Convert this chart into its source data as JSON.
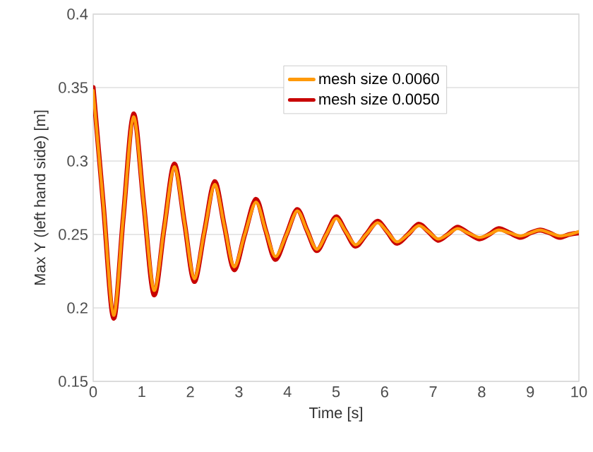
{
  "chart_data": {
    "type": "line",
    "xlabel": "Time [s]",
    "ylabel": "Max Y (left hand side) [m]",
    "xlim": [
      0,
      10
    ],
    "xticks": [
      0,
      1,
      2,
      3,
      4,
      5,
      6,
      7,
      8,
      9,
      10
    ],
    "ylim": [
      0.15,
      0.4
    ],
    "yticks": [
      0.15,
      0.2,
      0.25,
      0.3,
      0.35,
      0.4
    ],
    "grid": "y",
    "legend": "top",
    "marker": "none",
    "line_style": "solid",
    "series": [
      {
        "name": "mesh size 0.0050",
        "color": "#c80000",
        "x": [
          0,
          0.21,
          0.42,
          0.62,
          0.83,
          1.04,
          1.25,
          1.46,
          1.67,
          1.88,
          2.08,
          2.29,
          2.5,
          2.7,
          2.9,
          3.12,
          3.35,
          3.55,
          3.75,
          3.98,
          4.2,
          4.4,
          4.6,
          4.8,
          5.0,
          5.2,
          5.4,
          5.62,
          5.85,
          6.05,
          6.25,
          6.48,
          6.7,
          6.9,
          7.1,
          7.3,
          7.5,
          7.72,
          7.95,
          8.15,
          8.35,
          8.58,
          8.8,
          9.0,
          9.2,
          9.4,
          9.6,
          9.8,
          10
        ],
        "values": [
          0.35,
          0.27,
          0.193,
          0.262,
          0.332,
          0.271,
          0.209,
          0.254,
          0.298,
          0.258,
          0.218,
          0.252,
          0.286,
          0.256,
          0.226,
          0.25,
          0.274,
          0.253,
          0.233,
          0.25,
          0.267,
          0.253,
          0.239,
          0.25,
          0.262,
          0.252,
          0.242,
          0.25,
          0.259,
          0.252,
          0.244,
          0.25,
          0.257,
          0.252,
          0.246,
          0.25,
          0.255,
          0.251,
          0.247,
          0.25,
          0.254,
          0.251,
          0.248,
          0.251,
          0.253,
          0.251,
          0.248,
          0.25,
          0.251
        ]
      },
      {
        "name": "mesh size 0.0060",
        "color": "#ff9a0a",
        "x": [
          0,
          0.21,
          0.42,
          0.62,
          0.83,
          1.04,
          1.25,
          1.46,
          1.67,
          1.88,
          2.08,
          2.29,
          2.5,
          2.7,
          2.9,
          3.12,
          3.35,
          3.55,
          3.75,
          3.98,
          4.2,
          4.4,
          4.6,
          4.8,
          5.0,
          5.2,
          5.4,
          5.62,
          5.85,
          6.05,
          6.25,
          6.48,
          6.7,
          6.9,
          7.1,
          7.3,
          7.5,
          7.72,
          7.95,
          8.15,
          8.35,
          8.58,
          8.8,
          9.0,
          9.2,
          9.4,
          9.6,
          9.8,
          10
        ],
        "values": [
          0.348,
          0.27,
          0.195,
          0.262,
          0.33,
          0.271,
          0.212,
          0.254,
          0.296,
          0.258,
          0.22,
          0.252,
          0.284,
          0.256,
          0.228,
          0.25,
          0.272,
          0.253,
          0.235,
          0.25,
          0.266,
          0.253,
          0.24,
          0.25,
          0.261,
          0.252,
          0.243,
          0.25,
          0.258,
          0.252,
          0.245,
          0.25,
          0.256,
          0.252,
          0.247,
          0.25,
          0.254,
          0.251,
          0.248,
          0.25,
          0.253,
          0.251,
          0.249,
          0.251,
          0.253,
          0.251,
          0.249,
          0.25,
          0.252
        ]
      }
    ]
  }
}
